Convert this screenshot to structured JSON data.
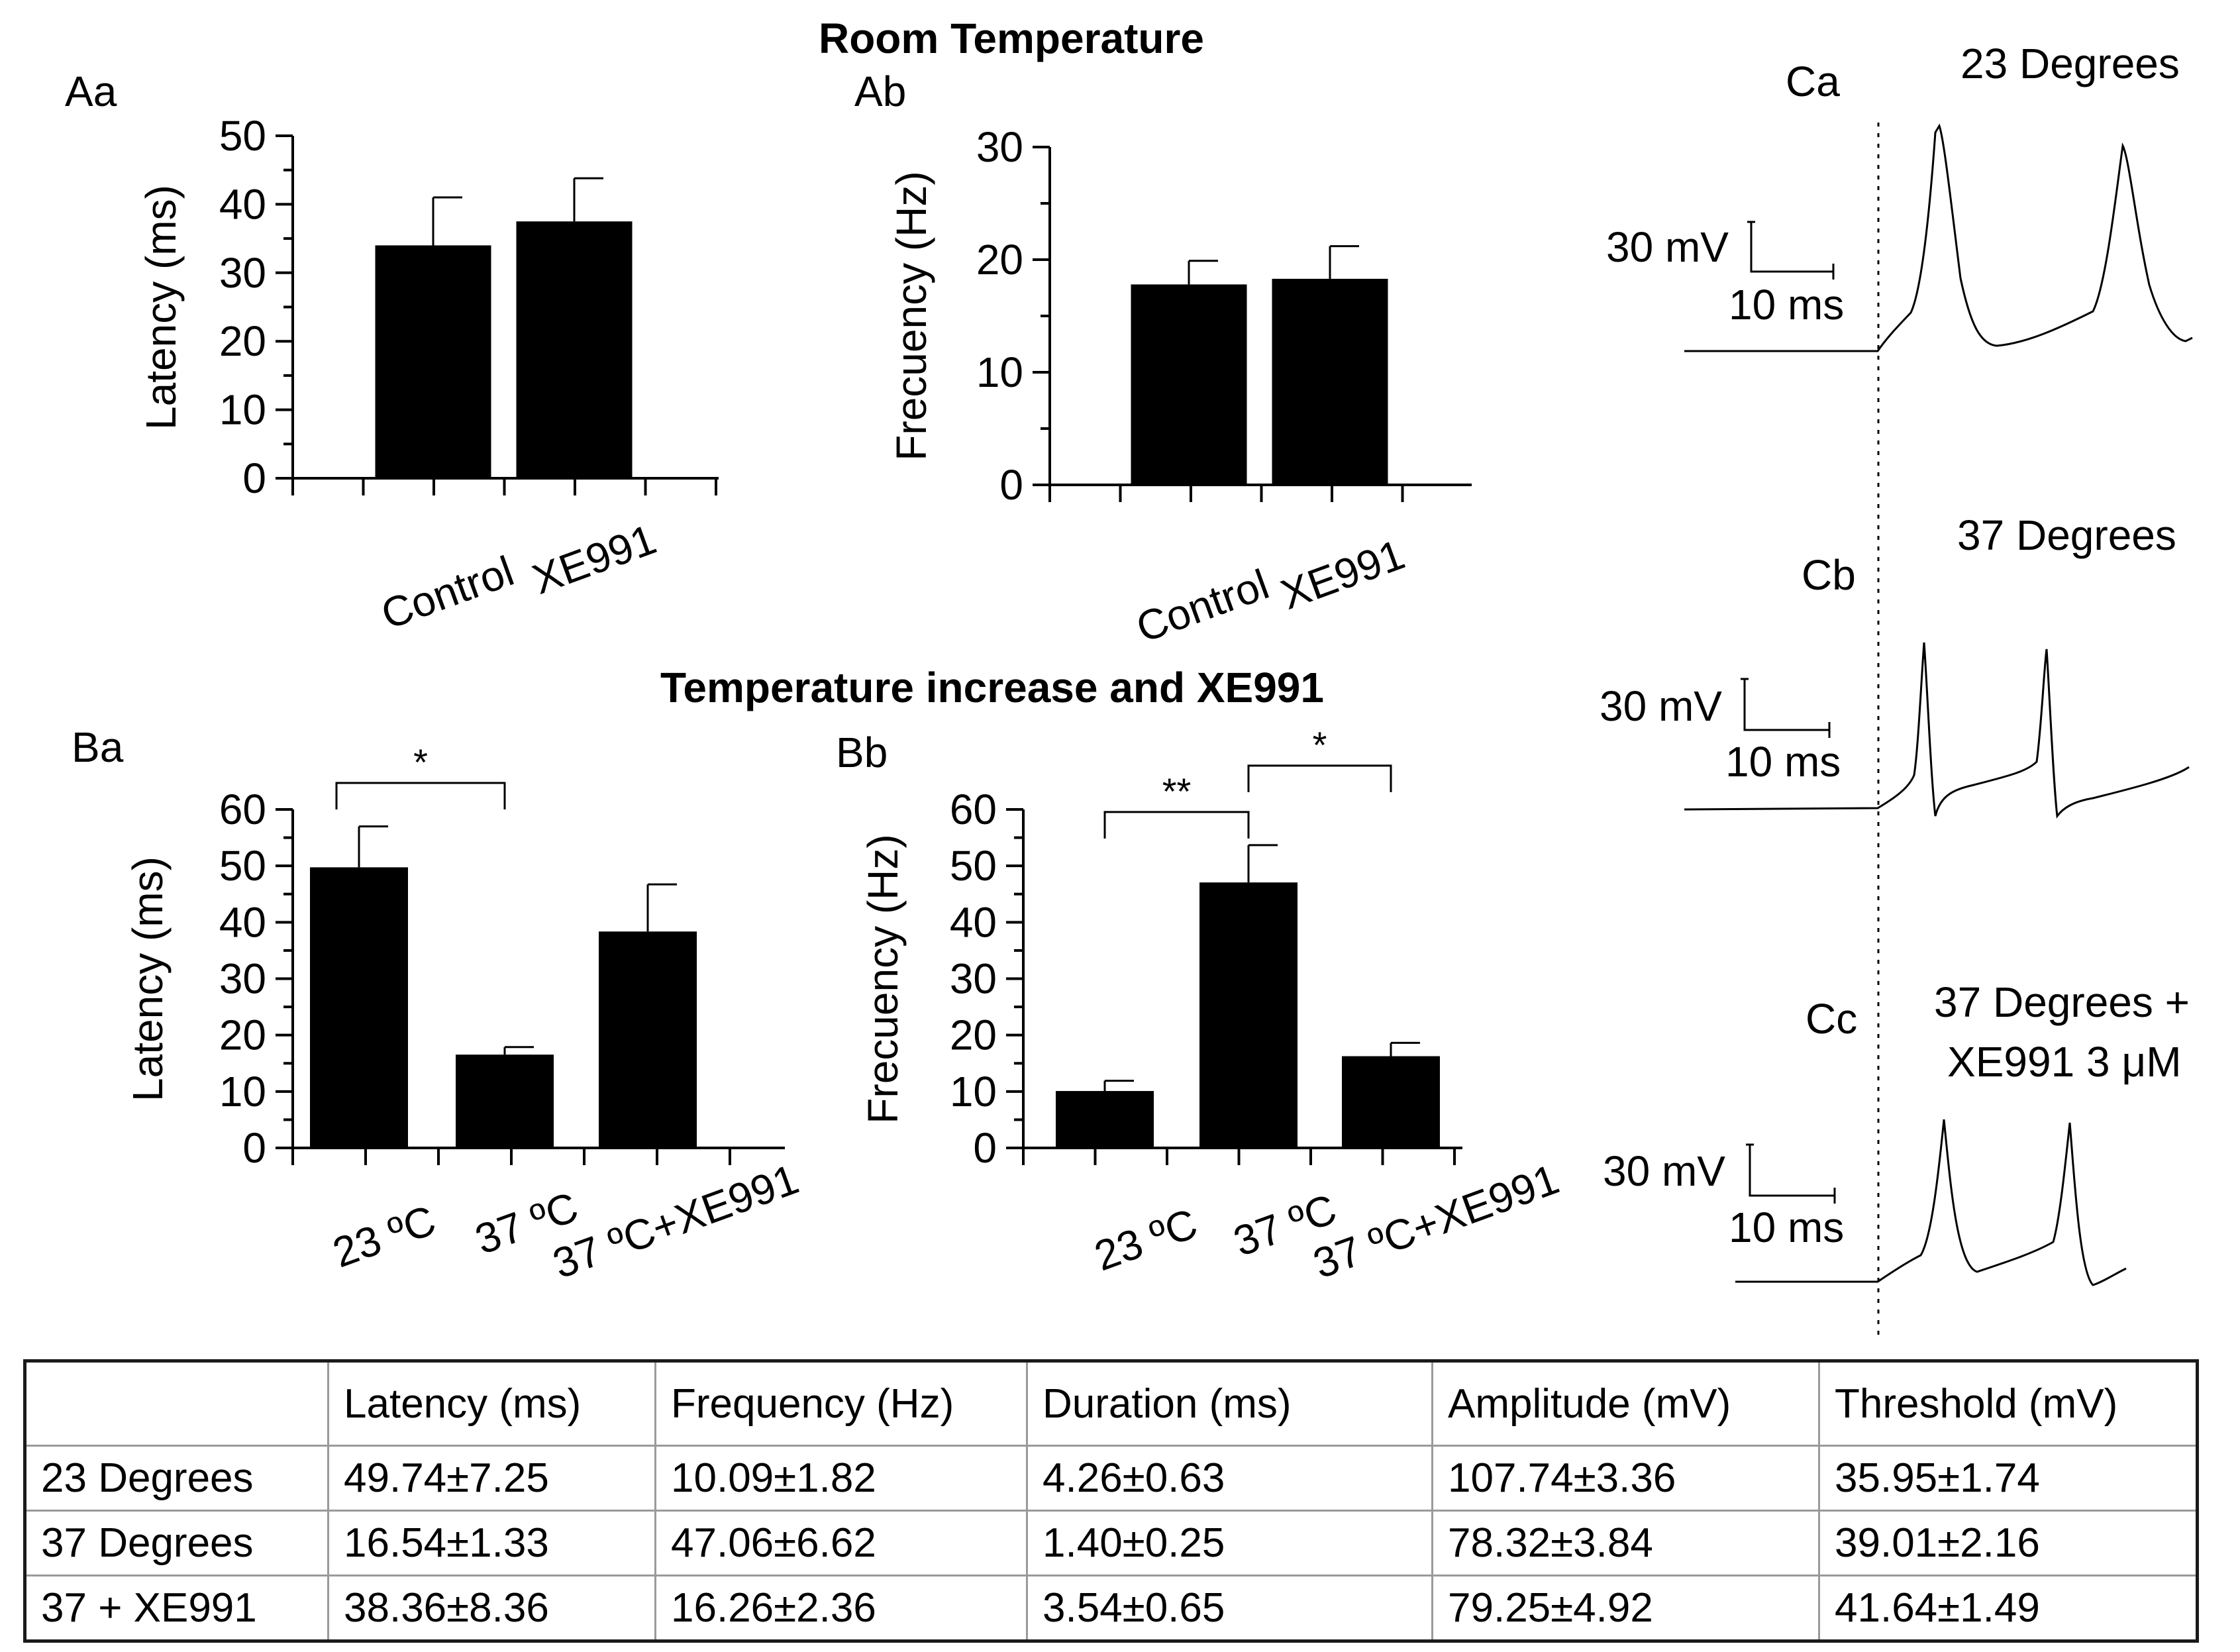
{
  "section_titles": {
    "room": "Room Temperature",
    "increase": "Temperature increase and XE991"
  },
  "chart_data": [
    {
      "panel": "Aa",
      "type": "bar",
      "ylabel": "Latency (ms)",
      "categories": [
        "Control",
        "XE991"
      ],
      "values": [
        34,
        37.5
      ],
      "errors": [
        7,
        6.3
      ],
      "ylim": [
        0,
        50
      ],
      "yticks": [
        "0",
        "10",
        "20",
        "30",
        "40",
        "50"
      ],
      "significance": []
    },
    {
      "panel": "Ab",
      "type": "bar",
      "ylabel": "Frecuency (Hz)",
      "categories": [
        "Control",
        "XE991"
      ],
      "values": [
        17.8,
        18.3
      ],
      "errors": [
        2.1,
        2.9
      ],
      "ylim": [
        0,
        30
      ],
      "yticks": [
        "0",
        "10",
        "20",
        "30"
      ],
      "significance": []
    },
    {
      "panel": "Ba",
      "type": "bar",
      "ylabel": "Latency (ms)",
      "categories": [
        "23 ºC",
        "37 ºC",
        "37 ºC+XE991"
      ],
      "values": [
        49.74,
        16.54,
        38.36
      ],
      "errors": [
        7.25,
        1.33,
        8.36
      ],
      "ylim": [
        0,
        60
      ],
      "yticks": [
        "0",
        "10",
        "20",
        "30",
        "40",
        "50",
        "60"
      ],
      "significance": [
        {
          "from": 0,
          "to": 1,
          "label": "*"
        }
      ]
    },
    {
      "panel": "Bb",
      "type": "bar",
      "ylabel": "Frecuency (Hz)",
      "categories": [
        "23 ºC",
        "37 ºC",
        "37 ºC+XE991"
      ],
      "values": [
        10.09,
        47.06,
        16.26
      ],
      "errors": [
        1.82,
        6.62,
        2.36
      ],
      "ylim": [
        0,
        60
      ],
      "yticks": [
        "0",
        "10",
        "20",
        "30",
        "40",
        "50",
        "60"
      ],
      "significance": [
        {
          "from": 0,
          "to": 1,
          "label": "**"
        },
        {
          "from": 1,
          "to": 2,
          "label": "*"
        }
      ]
    }
  ],
  "traces": [
    {
      "panel": "Ca",
      "title": "23 Degrees",
      "scale_v": "30 mV",
      "scale_t": "10 ms"
    },
    {
      "panel": "Cb",
      "title": "37 Degrees",
      "scale_v": "30 mV",
      "scale_t": "10 ms"
    },
    {
      "panel": "Cc",
      "title_lines": [
        "37 Degrees +",
        "XE991 3 μM"
      ],
      "scale_v": "30 mV",
      "scale_t": "10 ms"
    }
  ],
  "table": {
    "headers": [
      "",
      "Latency (ms)",
      "Frequency (Hz)",
      "Duration (ms)",
      "Amplitude (mV)",
      "Threshold (mV)"
    ],
    "rows": [
      [
        "23 Degrees",
        "49.74±7.25",
        "10.09±1.82",
        "4.26±0.63",
        "107.74±3.36",
        "35.95±1.74"
      ],
      [
        "37 Degrees",
        "16.54±1.33",
        "47.06±6.62",
        "1.40±0.25",
        "78.32±3.84",
        "39.01±2.16"
      ],
      [
        "37 + XE991",
        "38.36±8.36",
        "16.26±2.36",
        "3.54±0.65",
        "79.25±4.92",
        "41.64±1.49"
      ]
    ]
  }
}
